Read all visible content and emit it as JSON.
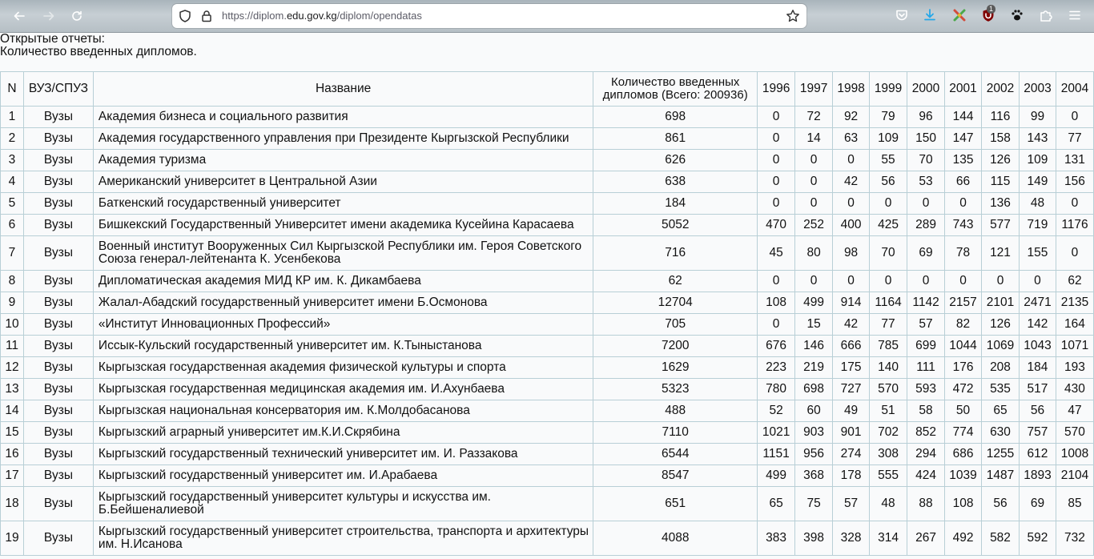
{
  "browser": {
    "url_prefix": "https://diplom.",
    "url_domain": "edu.gov.kg",
    "url_path": "/diplom/opendatas",
    "extension_badge": "1"
  },
  "page": {
    "title_line1": "Открытые отчеты:",
    "title_line2": "Количество введенных дипломов."
  },
  "table": {
    "headers": {
      "n": "N",
      "type": "ВУЗ/СПУЗ",
      "name": "Название",
      "total": "Количество введенных дипломов (Всего: 200936)",
      "years": [
        "1996",
        "1997",
        "1998",
        "1999",
        "2000",
        "2001",
        "2002",
        "2003",
        "2004"
      ]
    },
    "rows": [
      {
        "n": "1",
        "type": "Вузы",
        "name": "Академия бизнеса и социального развития",
        "total": "698",
        "years": [
          "0",
          "72",
          "92",
          "79",
          "96",
          "144",
          "116",
          "99",
          "0"
        ]
      },
      {
        "n": "2",
        "type": "Вузы",
        "name": "Академия государственного управления при Президенте Кыргызской Республики",
        "total": "861",
        "years": [
          "0",
          "14",
          "63",
          "109",
          "150",
          "147",
          "158",
          "143",
          "77"
        ]
      },
      {
        "n": "3",
        "type": "Вузы",
        "name": "Академия туризма",
        "total": "626",
        "years": [
          "0",
          "0",
          "0",
          "55",
          "70",
          "135",
          "126",
          "109",
          "131"
        ]
      },
      {
        "n": "4",
        "type": "Вузы",
        "name": "Американский университет в Центральной Азии",
        "total": "638",
        "years": [
          "0",
          "0",
          "42",
          "56",
          "53",
          "66",
          "115",
          "149",
          "156"
        ]
      },
      {
        "n": "5",
        "type": "Вузы",
        "name": "Баткенский государственный университет",
        "total": "184",
        "years": [
          "0",
          "0",
          "0",
          "0",
          "0",
          "0",
          "136",
          "48",
          "0"
        ]
      },
      {
        "n": "6",
        "type": "Вузы",
        "name": "Бишкекский Государственный Университет имени академика Кусейина Карасаева",
        "total": "5052",
        "years": [
          "470",
          "252",
          "400",
          "425",
          "289",
          "743",
          "577",
          "719",
          "1176"
        ]
      },
      {
        "n": "7",
        "type": "Вузы",
        "name": "Военный институт Вооруженных Сил Кыргызской Республики им. Героя Советского Союза генерал-лейтенанта К. Усенбекова",
        "total": "716",
        "years": [
          "45",
          "80",
          "98",
          "70",
          "69",
          "78",
          "121",
          "155",
          "0"
        ],
        "tall": true
      },
      {
        "n": "8",
        "type": "Вузы",
        "name": "Дипломатическая академия МИД КР им. К. Дикамбаева",
        "total": "62",
        "years": [
          "0",
          "0",
          "0",
          "0",
          "0",
          "0",
          "0",
          "0",
          "62"
        ]
      },
      {
        "n": "9",
        "type": "Вузы",
        "name": "Жалал-Абадский государственный университет имени Б.Осмонова",
        "total": "12704",
        "years": [
          "108",
          "499",
          "914",
          "1164",
          "1142",
          "2157",
          "2101",
          "2471",
          "2135"
        ]
      },
      {
        "n": "10",
        "type": "Вузы",
        "name": "«Институт Инновационных Профессий»",
        "total": "705",
        "years": [
          "0",
          "15",
          "42",
          "77",
          "57",
          "82",
          "126",
          "142",
          "164"
        ]
      },
      {
        "n": "11",
        "type": "Вузы",
        "name": "Иссык-Кульский государственный университет им. К.Тыныстанова",
        "total": "7200",
        "years": [
          "676",
          "146",
          "666",
          "785",
          "699",
          "1044",
          "1069",
          "1043",
          "1071"
        ]
      },
      {
        "n": "12",
        "type": "Вузы",
        "name": "Кыргызская государственная академия физической культуры и спорта",
        "total": "1629",
        "years": [
          "223",
          "219",
          "175",
          "140",
          "111",
          "176",
          "208",
          "184",
          "193"
        ]
      },
      {
        "n": "13",
        "type": "Вузы",
        "name": "Кыргызская государственная медицинская академия им. И.Ахунбаева",
        "total": "5323",
        "years": [
          "780",
          "698",
          "727",
          "570",
          "593",
          "472",
          "535",
          "517",
          "430"
        ]
      },
      {
        "n": "14",
        "type": "Вузы",
        "name": "Кыргызская национальная консерватория им. К.Молдобасанова",
        "total": "488",
        "years": [
          "52",
          "60",
          "49",
          "51",
          "58",
          "50",
          "65",
          "56",
          "47"
        ]
      },
      {
        "n": "15",
        "type": "Вузы",
        "name": "Кыргызский аграрный университет им.К.И.Скрябина",
        "total": "7110",
        "years": [
          "1021",
          "903",
          "901",
          "702",
          "852",
          "774",
          "630",
          "757",
          "570"
        ]
      },
      {
        "n": "16",
        "type": "Вузы",
        "name": "Кыргызский государственный технический университет им. И. Раззакова",
        "total": "6544",
        "years": [
          "1151",
          "956",
          "274",
          "308",
          "294",
          "686",
          "1255",
          "612",
          "1008"
        ]
      },
      {
        "n": "17",
        "type": "Вузы",
        "name": "Кыргызский государственный университет им. И.Арабаева",
        "total": "8547",
        "years": [
          "499",
          "368",
          "178",
          "555",
          "424",
          "1039",
          "1487",
          "1893",
          "2104"
        ]
      },
      {
        "n": "18",
        "type": "Вузы",
        "name": "Кыргызский государственный университет культуры и искусства им. Б.Бейшеналиевой",
        "total": "651",
        "years": [
          "65",
          "75",
          "57",
          "48",
          "88",
          "108",
          "56",
          "69",
          "85"
        ],
        "tall": true
      },
      {
        "n": "19",
        "type": "Вузы",
        "name": "Кыргызский государственный университет строительства, транспорта и архитектуры им. Н.Исанова",
        "total": "4088",
        "years": [
          "383",
          "398",
          "328",
          "314",
          "267",
          "492",
          "582",
          "592",
          "732"
        ],
        "tall": true
      }
    ]
  }
}
